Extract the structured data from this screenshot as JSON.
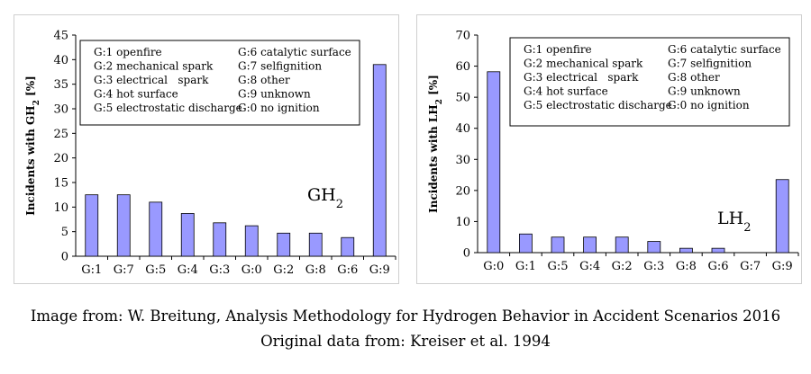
{
  "chart_data": [
    {
      "type": "bar",
      "ylabel_main": "Incidents with GH",
      "ylabel_sub": "2",
      "ylabel_unit": " [%]",
      "ylim": [
        0,
        45
      ],
      "yticks": [
        0,
        5,
        10,
        15,
        20,
        25,
        30,
        35,
        40,
        45
      ],
      "categories": [
        "G:1",
        "G:7",
        "G:5",
        "G:4",
        "G:3",
        "G:0",
        "G:2",
        "G:8",
        "G:6",
        "G:9"
      ],
      "values": [
        12.5,
        12.5,
        11,
        8.7,
        6.8,
        6.2,
        4.7,
        4.7,
        3.8,
        39
      ],
      "tag_main": "GH",
      "tag_sub": "2",
      "bar_color": "#9999ff",
      "legend_left": [
        "G:1 openfire",
        "G:2 mechanical spark",
        "G:3 electrical   spark",
        "G:4 hot surface",
        "G:5 electrostatic discharge"
      ],
      "legend_right": [
        "G:6 catalytic surface",
        "G:7 selfignition",
        "G:8 other",
        "G:9 unknown",
        "G:0 no ignition"
      ]
    },
    {
      "type": "bar",
      "ylabel_main": "Incidents with LH",
      "ylabel_sub": "2",
      "ylabel_unit": " [%]",
      "ylim": [
        0,
        70
      ],
      "yticks": [
        0,
        10,
        20,
        30,
        40,
        50,
        60,
        70
      ],
      "categories": [
        "G:0",
        "G:1",
        "G:5",
        "G:4",
        "G:2",
        "G:3",
        "G:8",
        "G:6",
        "G:7",
        "G:9"
      ],
      "values": [
        58.2,
        6,
        5,
        5,
        5,
        3.6,
        1.4,
        1.4,
        0,
        23.5
      ],
      "tag_main": "LH",
      "tag_sub": "2",
      "bar_color": "#9999ff",
      "legend_left": [
        "G:1 openfire",
        "G:2 mechanical spark",
        "G:3 electrical   spark",
        "G:4 hot surface",
        "G:5 electrostatic discharge"
      ],
      "legend_right": [
        "G:6 catalytic surface",
        "G:7 selfignition",
        "G:8 other",
        "G:9 unknown",
        "G:0 no ignition"
      ]
    }
  ],
  "caption": {
    "line1": "Image from: W. Breitung, Analysis Methodology for Hydrogen Behavior in Accident Scenarios 2016",
    "line2": "Original data from: Kreiser et al. 1994"
  }
}
